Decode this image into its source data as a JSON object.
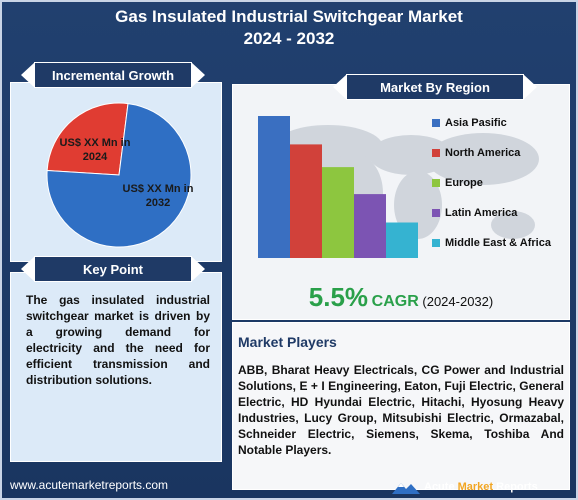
{
  "title_line1": "Gas Insulated Industrial Switchgear Market",
  "title_line2": "2024 - 2032",
  "incremental": {
    "heading": "Incremental Growth",
    "label_2024": [
      "US$ XX Mn in",
      "2024"
    ],
    "label_2032": [
      "US$ XX Mn in",
      "2032"
    ]
  },
  "key_point": {
    "heading": "Key Point",
    "text": "The gas insulated industrial switchgear market is driven by a growing demand for electricity and the need for efficient transmission and distribution solutions."
  },
  "region": {
    "heading": "Market By Region"
  },
  "cagr": {
    "value": "5.5%",
    "label": "CAGR",
    "period": "(2024-2032)"
  },
  "players": {
    "heading": "Market Players",
    "text": "ABB, Bharat Heavy Electricals, CG Power and Industrial Solutions,  E + I Engineering, Eaton, Fuji Electric, General Electric, HD Hyundai Electric, Hitachi, Hyosung Heavy Industries, Lucy Group, Mitsubishi  Electric, Ormazabal,  Schneider Electric, Siemens, Skema, Toshiba And Notable Players."
  },
  "footer": {
    "url": "www.acutemarketreports.com",
    "logo_part1": "Acute ",
    "logo_part2": "Market",
    "logo_part3": " Reports"
  },
  "colors": {
    "pie_2024": "#e03c32",
    "pie_2032": "#2f6fc4",
    "accent_green": "#2aa04a"
  },
  "chart_data": [
    {
      "type": "pie",
      "title": "",
      "slices": [
        {
          "name": "US$ XX Mn in 2024",
          "value": 0.26,
          "color": "#e03c32"
        },
        {
          "name": "US$ XX Mn in 2032",
          "value": 0.74,
          "color": "#2f6fc4"
        }
      ]
    },
    {
      "type": "bar",
      "title": "",
      "categories": [
        "Asia Pasific",
        "North America",
        "Europe",
        "Latin America",
        "Middle East & Africa"
      ],
      "values": [
        100,
        80,
        64,
        45,
        25
      ],
      "colors": [
        "#3a6fc1",
        "#d1413a",
        "#8dc63f",
        "#7c54b3",
        "#35b3d1"
      ],
      "ylim": [
        0,
        100
      ],
      "grid": false,
      "legend": "right"
    }
  ]
}
